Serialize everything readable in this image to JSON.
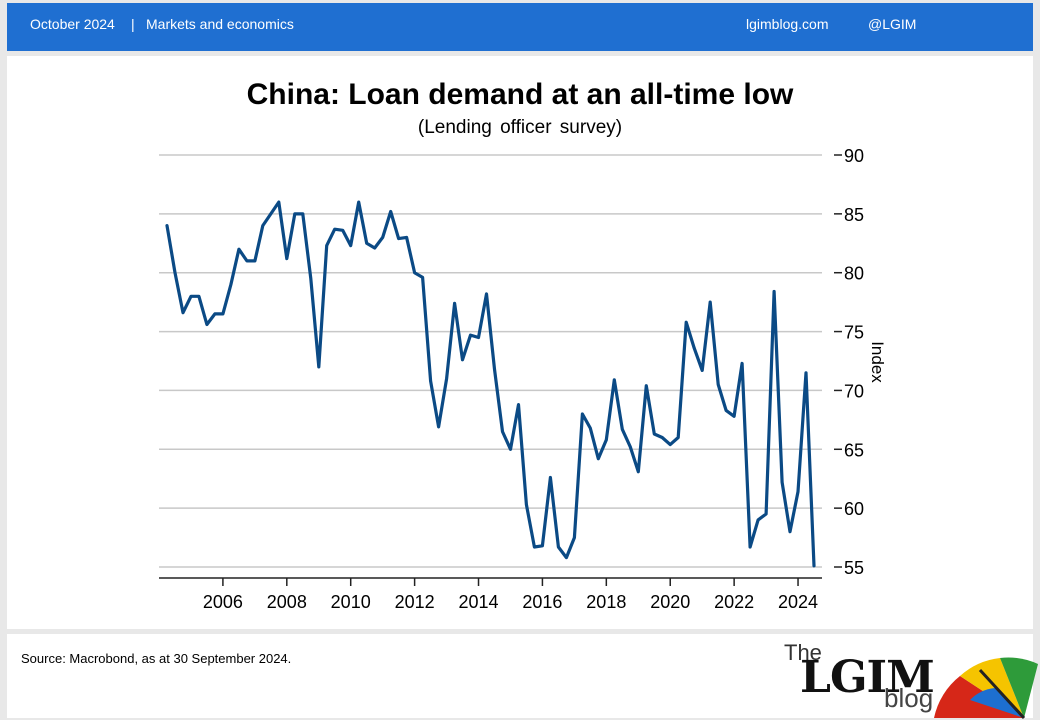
{
  "header": {
    "date": "October 2024",
    "separator": "|",
    "category": "Markets and economics",
    "website": "lgimblog.com",
    "handle": "@LGIM"
  },
  "footer": {
    "source": "Source: Macrobond, as at 30 September 2024."
  },
  "logo": {
    "the": "The",
    "name": "LGIM",
    "blog": "blog"
  },
  "colors": {
    "header": "#1f6fd1",
    "line": "#0b4a85",
    "grid": "#c8c8c8"
  },
  "chart_data": {
    "type": "line",
    "title": "China: Loan demand at an all-time low",
    "subtitle": "(Lending officer survey)",
    "ylabel": "Index",
    "y_axis_position": "right",
    "ylim": [
      55,
      90
    ],
    "xlim": [
      2004.0,
      2024.75
    ],
    "yticks": [
      55,
      60,
      65,
      70,
      75,
      80,
      85,
      90
    ],
    "xticks": [
      "2006",
      "2008",
      "2010",
      "2012",
      "2014",
      "2016",
      "2018",
      "2020",
      "2022",
      "2024"
    ],
    "grid": true,
    "series": [
      {
        "x": [
          2004.25,
          2004.5,
          2004.75,
          2005.0,
          2005.25,
          2005.5,
          2005.75,
          2006.0,
          2006.25,
          2006.5,
          2006.75,
          2007.0,
          2007.25,
          2007.5,
          2007.75,
          2008.0,
          2008.25,
          2008.5,
          2008.75,
          2009.0,
          2009.25,
          2009.5,
          2009.75,
          2010.0,
          2010.25,
          2010.5,
          2010.75,
          2011.0,
          2011.25,
          2011.5,
          2011.75,
          2012.0,
          2012.25,
          2012.5,
          2012.75,
          2013.0,
          2013.25,
          2013.5,
          2013.75,
          2014.0,
          2014.25,
          2014.5,
          2014.75,
          2015.0,
          2015.25,
          2015.5,
          2015.75,
          2016.0,
          2016.25,
          2016.5,
          2016.75,
          2017.0,
          2017.25,
          2017.5,
          2017.75,
          2018.0,
          2018.25,
          2018.5,
          2018.75,
          2019.0,
          2019.25,
          2019.5,
          2019.75,
          2020.0,
          2020.25,
          2020.5,
          2020.75,
          2021.0,
          2021.25,
          2021.5,
          2021.75,
          2022.0,
          2022.25,
          2022.5,
          2022.75,
          2023.0,
          2023.25,
          2023.5,
          2023.75,
          2024.0,
          2024.25,
          2024.5
        ],
        "values": [
          84.0,
          80.0,
          76.6,
          78.0,
          78.0,
          75.6,
          76.5,
          76.5,
          79.0,
          82.0,
          81.0,
          81.0,
          84.0,
          85.0,
          86.0,
          81.2,
          85.0,
          85.0,
          79.5,
          72.0,
          82.3,
          83.7,
          83.6,
          82.3,
          86.0,
          82.5,
          82.1,
          83.0,
          85.2,
          82.9,
          83.0,
          80.0,
          79.6,
          70.8,
          66.9,
          71.0,
          77.4,
          72.6,
          74.7,
          74.5,
          78.2,
          71.8,
          66.5,
          65.0,
          68.8,
          60.3,
          56.7,
          56.8,
          62.6,
          56.7,
          55.8,
          57.5,
          68.0,
          66.8,
          64.2,
          65.8,
          70.9,
          66.7,
          65.2,
          63.1,
          70.4,
          66.3,
          66.0,
          65.4,
          66.0,
          75.8,
          73.6,
          71.7,
          77.5,
          70.5,
          68.3,
          67.8,
          72.3,
          56.7,
          59.0,
          59.5,
          78.4,
          62.2,
          58.0,
          61.4,
          71.5,
          55.1
        ]
      }
    ]
  }
}
